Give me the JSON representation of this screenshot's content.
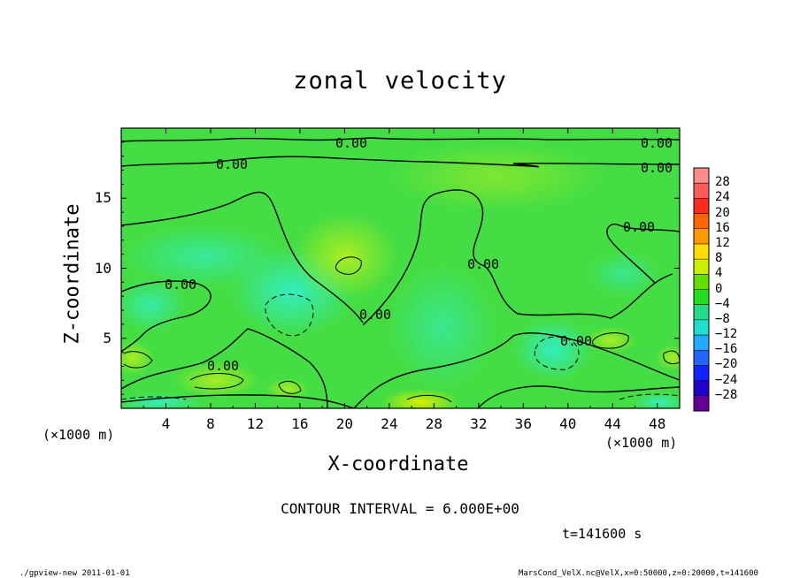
{
  "header": {
    "title": "zonal velocity"
  },
  "chart_data": {
    "type": "heatmap",
    "title": "zonal velocity",
    "xlabel": "X-coordinate",
    "ylabel": "Z-coordinate",
    "x_unit": "(×1000 m)",
    "y_unit": "(×1000 m)",
    "xlim": [
      0,
      50
    ],
    "ylim": [
      0,
      20
    ],
    "x_ticks": [
      4,
      8,
      12,
      16,
      20,
      24,
      28,
      32,
      36,
      40,
      44,
      48
    ],
    "y_ticks": [
      5,
      10,
      15
    ],
    "colorbar": {
      "levels": [
        "28",
        "24",
        "20",
        "16",
        "12",
        "8",
        "4",
        "0",
        "−4",
        "−8",
        "−12",
        "−16",
        "−20",
        "−24",
        "−28"
      ],
      "colors": [
        "#ff8c8c",
        "#ff5a5a",
        "#ff2a1e",
        "#ff6600",
        "#ff9900",
        "#ffdd00",
        "#ccee00",
        "#66dd00",
        "#22dd22",
        "#22dd88",
        "#22ddcc",
        "#22aaff",
        "#2266ff",
        "#1122ff",
        "#2200cc",
        "#660099"
      ]
    },
    "contour_labels": [
      "0.00",
      "0.00",
      "0.00",
      "0.00",
      "0.00",
      "0.00",
      "0.00",
      "0.00",
      "0.00",
      "0.00"
    ],
    "contour_interval": "CONTOUR INTERVAL = 6.000E+00",
    "time": "t=141600 s"
  },
  "footer": {
    "left": "./gpview-new  2011-01-01",
    "right": "MarsCond_VelX.nc@VelX,x=0:50000,z=0:20000,t=141600"
  }
}
